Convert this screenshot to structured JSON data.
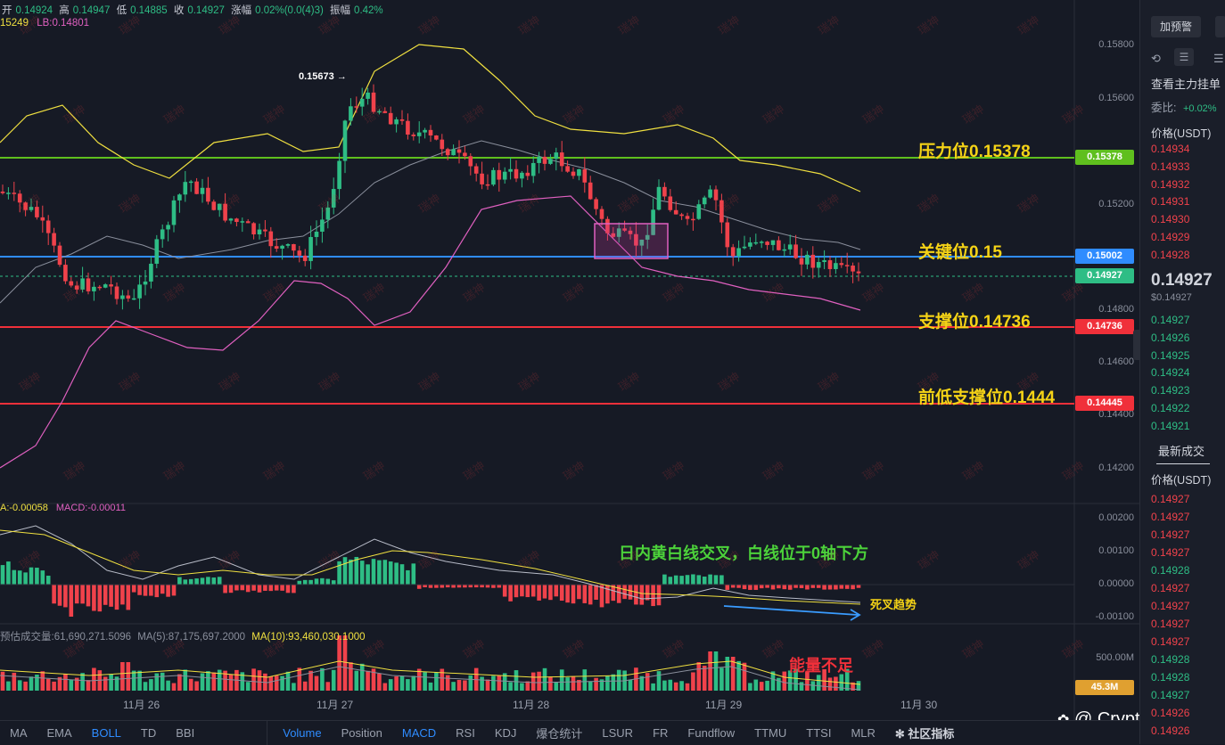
{
  "ohlc": {
    "open_label": "开",
    "open": "0.14924",
    "high_label": "高",
    "high": "0.14947",
    "low_label": "低",
    "low": "0.14885",
    "close_label": "收",
    "close": "0.14927",
    "change_label": "涨幅",
    "change": "0.02%(0.0(4)3)",
    "amp_label": "振幅",
    "amp": "0.42%"
  },
  "boll_legend": {
    "ub": "15249",
    "lb": "LB:0.14801"
  },
  "macd_legend": {
    "dea": "A:-0.00058",
    "macd": "MACD:-0.00011"
  },
  "vol_legend": {
    "est": "预估成交量:61,690,271.5096",
    "ma5": "MA(5):87,175,697.2000",
    "ma10": "MA(10):93,460,030.1000"
  },
  "price_axis": [
    "0.15800",
    "0.15600",
    "0.15200",
    "0.14800",
    "0.14600",
    "0.14400",
    "0.14200"
  ],
  "macd_axis": [
    "0.00200",
    "0.00100",
    "0.00000",
    "-0.00100"
  ],
  "vol_axis": [
    "500.00M"
  ],
  "levels": {
    "resistance": {
      "tag": "0.15378",
      "label": "压力位0.15378",
      "color": "#5fbf1e"
    },
    "key": {
      "tag": "0.15002",
      "label": "关键位0.15",
      "color": "#2f8cff"
    },
    "current": {
      "tag": "0.14927",
      "color": "#2ebd85"
    },
    "support": {
      "tag": "0.14736",
      "label": "支撑位0.14736",
      "color": "#f0303a"
    },
    "prev_low": {
      "tag": "0.14445",
      "label": "前低支撑位0.1444",
      "color": "#f0303a"
    },
    "volume": {
      "tag": "45.3M",
      "color": "#e0a030"
    }
  },
  "high_marker": "0.15673 →",
  "annotations": {
    "macd_note": "日内黄白线交叉，白线位于0轴下方",
    "death_cross": "死叉趋势",
    "low_energy": "能量不足"
  },
  "dates": [
    "11月 26",
    "11月 27",
    "11月 28",
    "11月 29",
    "11月 30"
  ],
  "watermark": "瑞神",
  "bottom_tabs": [
    "MA",
    "EMA",
    "BOLL",
    "TD",
    "BBI",
    "Volume",
    "Position",
    "MACD",
    "RSI",
    "KDJ",
    "爆仓统计",
    "LSUR",
    "FR",
    "Fundflow",
    "TTMU",
    "TTSI",
    "MLR",
    "社区指标"
  ],
  "active_tabs": [
    "BOLL",
    "Volume",
    "MACD"
  ],
  "sidebar": {
    "alert_button": "加预警",
    "main_orders": "查看主力挂单",
    "ratio_label": "委比:",
    "ratio_value": "+0.02%",
    "price_header": "价格(USDT)",
    "asks": [
      "0.14934",
      "0.14933",
      "0.14932",
      "0.14931",
      "0.14930",
      "0.14929",
      "0.14928"
    ],
    "last_price": "0.14927",
    "last_price_usd": "$0.14927",
    "bids": [
      "0.14927",
      "0.14926",
      "0.14925",
      "0.14924",
      "0.14923",
      "0.14922",
      "0.14921"
    ],
    "trades_title": "最新成交",
    "trades_header": "价格(USDT)",
    "trades": [
      {
        "p": "0.14927",
        "c": "red"
      },
      {
        "p": "0.14927",
        "c": "red"
      },
      {
        "p": "0.14927",
        "c": "red"
      },
      {
        "p": "0.14927",
        "c": "red"
      },
      {
        "p": "0.14928",
        "c": "green"
      },
      {
        "p": "0.14927",
        "c": "red"
      },
      {
        "p": "0.14927",
        "c": "red"
      },
      {
        "p": "0.14927",
        "c": "red"
      },
      {
        "p": "0.14927",
        "c": "red"
      },
      {
        "p": "0.14928",
        "c": "green"
      },
      {
        "p": "0.14928",
        "c": "green"
      },
      {
        "p": "0.14927",
        "c": "green"
      },
      {
        "p": "0.14926",
        "c": "red"
      },
      {
        "p": "0.14926",
        "c": "red"
      }
    ]
  },
  "credit": "@ Crypto",
  "colors": {
    "up": "#2ebd85",
    "down": "#f0424b",
    "bg": "#161a25",
    "boll_up": "#f0e040",
    "boll_mid": "#8a8f9c",
    "boll_lb": "#e060c0"
  }
}
